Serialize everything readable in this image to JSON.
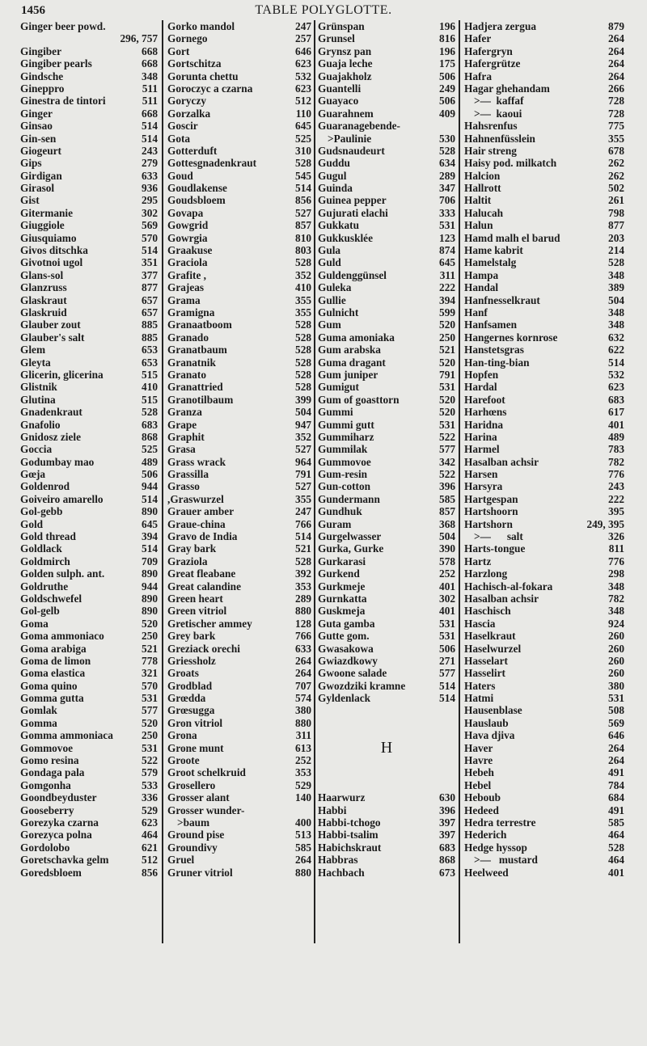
{
  "header": {
    "page_number": "1456",
    "title": "TABLE POLYGLOTTE."
  },
  "columns": [
    [
      [
        "Ginger beer powd.",
        ""
      ],
      [
        "",
        "296, 757"
      ],
      [
        "Gingiber",
        "668"
      ],
      [
        "Gingiber pearls",
        "668"
      ],
      [
        "Gindsche",
        "348"
      ],
      [
        "Gineppro",
        "511"
      ],
      [
        "Ginestra de tintori",
        "511"
      ],
      [
        "Ginger",
        "668"
      ],
      [
        "Ginsao",
        "514"
      ],
      [
        "Gin-sen",
        "514"
      ],
      [
        "Giogeurt",
        "243"
      ],
      [
        "Gips",
        "279"
      ],
      [
        "Girdigan",
        "633"
      ],
      [
        "Girasol",
        "936"
      ],
      [
        "Gist",
        "295"
      ],
      [
        "Gitermanie",
        "302"
      ],
      [
        "Giuggiole",
        "569"
      ],
      [
        "Giusquiamo",
        "570"
      ],
      [
        "Givos ditschka",
        "514"
      ],
      [
        "Givotnoi ugol",
        "351"
      ],
      [
        "Glans-sol",
        "377"
      ],
      [
        "Glanzruss",
        "877"
      ],
      [
        "Glaskraut",
        "657"
      ],
      [
        "Glaskruid",
        "657"
      ],
      [
        "Glauber zout",
        "885"
      ],
      [
        "Glauber's salt",
        "885"
      ],
      [
        "Glem",
        "653"
      ],
      [
        "Gleyta",
        "653"
      ],
      [
        "Glicerin, glicerina",
        "515"
      ],
      [
        "Glistnik",
        "410"
      ],
      [
        "Glutina",
        "515"
      ],
      [
        "Gnadenkraut",
        "528"
      ],
      [
        "Gnafolio",
        "683"
      ],
      [
        "Gnidosz ziele",
        "868"
      ],
      [
        "Goccia",
        "525"
      ],
      [
        "Godumbay mao",
        "489"
      ],
      [
        "Gœja",
        "506"
      ],
      [
        "Goldenrod",
        "944"
      ],
      [
        "Goiveiro amarello",
        "514"
      ],
      [
        "Gol-gebb",
        "890"
      ],
      [
        "Gold",
        "645"
      ],
      [
        "Gold thread",
        "394"
      ],
      [
        "Goldlack",
        "514"
      ],
      [
        "Goldmirch",
        "709"
      ],
      [
        "Golden sulph. ant.",
        "890"
      ],
      [
        "Goldruthe",
        "944"
      ],
      [
        "Goldschwefel",
        "890"
      ],
      [
        "Gol-gelb",
        "890"
      ],
      [
        "Goma",
        "520"
      ],
      [
        "Goma ammoniaco",
        "250"
      ],
      [
        "Goma arabiga",
        "521"
      ],
      [
        "Goma de limon",
        "778"
      ],
      [
        "Goma elastica",
        "321"
      ],
      [
        "Goma quino",
        "570"
      ],
      [
        "Gomma gutta",
        "531"
      ],
      [
        "Gomlak",
        "577"
      ],
      [
        "Gomma",
        "520"
      ],
      [
        "Gomma ammoniaca",
        "250"
      ],
      [
        "Gommovoe",
        "531"
      ],
      [
        "Gomo resina",
        "522"
      ],
      [
        "Gondaga pala",
        "579"
      ],
      [
        "Gomgonha",
        "533"
      ],
      [
        "Goondbeyduster",
        "336"
      ],
      [
        "Gooseberry",
        "529"
      ],
      [
        "Gorezyka czarna",
        "623"
      ],
      [
        "Gorezyca polna",
        "464"
      ],
      [
        "Gordolobo",
        "621"
      ],
      [
        "Goretschavka gelm",
        "512"
      ],
      [
        "Goredsbloem",
        "856"
      ]
    ],
    [
      [
        "Gorko mandol",
        "247"
      ],
      [
        "Gornego",
        "257"
      ],
      [
        "Gort",
        "646"
      ],
      [
        "Gortschitza",
        "623"
      ],
      [
        "Gorunta chettu",
        "532"
      ],
      [
        "Goroczyc a czarna",
        "623"
      ],
      [
        "Goryczy",
        "512"
      ],
      [
        "Gorzalka",
        "110"
      ],
      [
        "Goscir",
        "645"
      ],
      [
        "Gota",
        "525"
      ],
      [
        "Gotterduft",
        "310"
      ],
      [
        "Gottesgnadenkraut",
        "528"
      ],
      [
        "Goud",
        "545"
      ],
      [
        "Goudlakense",
        "514"
      ],
      [
        "Goudsbloem",
        "856"
      ],
      [
        "Govapa",
        "527"
      ],
      [
        "Gowgrid",
        "857"
      ],
      [
        "Gowrgia",
        "810"
      ],
      [
        "Graakuse",
        "803"
      ],
      [
        "Graciola",
        "528"
      ],
      [
        "Grafite ,",
        "352"
      ],
      [
        "Grajeas",
        "410"
      ],
      [
        "Grama",
        "355"
      ],
      [
        "Gramigna",
        "355"
      ],
      [
        "Granaatboom",
        "528"
      ],
      [
        "Granado",
        "528"
      ],
      [
        "Granatbaum",
        "528"
      ],
      [
        "Granatnik",
        "528"
      ],
      [
        "Granato",
        "528"
      ],
      [
        "Granattried",
        "528"
      ],
      [
        "Granotilbaum",
        "399"
      ],
      [
        "Granza",
        "504"
      ],
      [
        "Grape",
        "947"
      ],
      [
        "Graphit",
        "352"
      ],
      [
        "Grasa",
        "527"
      ],
      [
        "Grass wrack",
        "964"
      ],
      [
        "Grassilla",
        "791"
      ],
      [
        "Grasso",
        "527"
      ],
      [
        ",Graswurzel",
        "355"
      ],
      [
        "Grauer amber",
        "247"
      ],
      [
        "Graue-china",
        "766"
      ],
      [
        "Gravo de India",
        "514"
      ],
      [
        "Gray bark",
        "521"
      ],
      [
        "Graziola",
        "528"
      ],
      [
        "Great fleabane",
        "392"
      ],
      [
        "Great calandine",
        "353"
      ],
      [
        "Green heart",
        "289"
      ],
      [
        "Green vitriol",
        "880"
      ],
      [
        "Gretischer ammey",
        "128"
      ],
      [
        "Grey bark",
        "766"
      ],
      [
        "Greziack orechi",
        "633"
      ],
      [
        "Griessholz",
        "264"
      ],
      [
        "Groats",
        "264"
      ],
      [
        "Grodblad",
        "707"
      ],
      [
        "Grœdda",
        "574"
      ],
      [
        "Grœsugga",
        "380"
      ],
      [
        "Gron vitriol",
        "880"
      ],
      [
        "Grona",
        "311"
      ],
      [
        "Grone munt",
        "613"
      ],
      [
        "Groote",
        "252"
      ],
      [
        "Groot schelkruid",
        "353"
      ],
      [
        "Grosellero",
        "529"
      ],
      [
        "Grosser alant",
        "140"
      ],
      [
        "Grosser wunder-",
        ""
      ],
      [
        ">baum",
        "400"
      ],
      [
        "Ground pise",
        "513"
      ],
      [
        "Groundivy",
        "585"
      ],
      [
        "Gruel",
        "264"
      ],
      [
        "Gruner vitriol",
        "880"
      ]
    ],
    [
      [
        "Grünspan",
        "196"
      ],
      [
        "Grunsel",
        "816"
      ],
      [
        "Grynsz pan",
        "196"
      ],
      [
        "Guaja leche",
        "175"
      ],
      [
        "Guajakholz",
        "506"
      ],
      [
        "Guantelli",
        "249"
      ],
      [
        "Guayaco",
        "506"
      ],
      [
        "Guarahnem",
        "409"
      ],
      [
        "Guaranagebende-",
        ""
      ],
      [
        ">Paulinie",
        "530"
      ],
      [
        "Gudsnaudeurt",
        "528"
      ],
      [
        "Guddu",
        "634"
      ],
      [
        "Gugul",
        "289"
      ],
      [
        "Guinda",
        "347"
      ],
      [
        "Guinea pepper",
        "706"
      ],
      [
        "Gujurati elachi",
        "333"
      ],
      [
        "Gukkatu",
        "531"
      ],
      [
        "Gukkusklée",
        "123"
      ],
      [
        "Gula",
        "874"
      ],
      [
        "Guld",
        "645"
      ],
      [
        "Guldenggünsel",
        "311"
      ],
      [
        "Guleka",
        "222"
      ],
      [
        "Gullie",
        "394"
      ],
      [
        "Gulnicht",
        "599"
      ],
      [
        "Gum",
        "520"
      ],
      [
        "Guma amoniaka",
        "250"
      ],
      [
        "Gum arabska",
        "521"
      ],
      [
        "Guma dragant",
        "520"
      ],
      [
        "Gum juniper",
        "791"
      ],
      [
        "Gumigut",
        "531"
      ],
      [
        "Gum of goasttorn",
        "520"
      ],
      [
        "Gummi",
        "520"
      ],
      [
        "Gummi gutt",
        "531"
      ],
      [
        "Gummiharz",
        "522"
      ],
      [
        "Gummilak",
        "577"
      ],
      [
        "Gummovoe",
        "342"
      ],
      [
        "Gum-resin",
        "522"
      ],
      [
        "Gun-cotton",
        "396"
      ],
      [
        "Gundermann",
        "585"
      ],
      [
        "Gundhuk",
        "857"
      ],
      [
        "Guram",
        "368"
      ],
      [
        "Gurgelwasser",
        "504"
      ],
      [
        "Gurka, Gurke",
        "390"
      ],
      [
        "Gurkarasi",
        "578"
      ],
      [
        "Gurkend",
        "252"
      ],
      [
        "Gurkmeje",
        "401"
      ],
      [
        "Gurnkatta",
        "302"
      ],
      [
        "Guskmeja",
        "401"
      ],
      [
        "Guta gamba",
        "531"
      ],
      [
        "Gutte gom.",
        "531"
      ],
      [
        "Gwasakowa",
        "506"
      ],
      [
        "Gwiazdkowy",
        "271"
      ],
      [
        "Gwoone salade",
        "577"
      ],
      [
        "Gwozdziki kramne",
        "514"
      ],
      [
        "Gyldenlack",
        "514"
      ],
      [
        "",
        ""
      ],
      [
        "",
        ""
      ],
      [
        "",
        ""
      ],
      [
        "#H",
        ""
      ],
      [
        "",
        ""
      ],
      [
        "",
        ""
      ],
      [
        "",
        ""
      ],
      [
        "Haarwurz",
        "630"
      ],
      [
        "Habbi",
        "396"
      ],
      [
        "Habbi-tchogo",
        "397"
      ],
      [
        "Habbi-tsalim",
        "397"
      ],
      [
        "Habichskraut",
        "683"
      ],
      [
        "Habbras",
        "868"
      ],
      [
        "Hachbach",
        "673"
      ]
    ],
    [
      [
        "Hadjera zergua",
        "879"
      ],
      [
        "Hafer",
        "264"
      ],
      [
        "Hafergryn",
        "264"
      ],
      [
        "Hafergrütze",
        "264"
      ],
      [
        "Hafra",
        "264"
      ],
      [
        "Hagar ghehandam",
        "266"
      ],
      [
        ">—  kaffaf",
        "728"
      ],
      [
        ">—  kaoui",
        "728"
      ],
      [
        "Hahsrenfus",
        "775"
      ],
      [
        "Hahnenfüsslein",
        "355"
      ],
      [
        "Hair streng",
        "678"
      ],
      [
        "Haisy pod. milkatch",
        "262"
      ],
      [
        "Halcion",
        "262"
      ],
      [
        "Hallrott",
        "502"
      ],
      [
        "Haltit",
        "261"
      ],
      [
        "Halucah",
        "798"
      ],
      [
        "Halun",
        "877"
      ],
      [
        "Hamd malh el barud",
        "203"
      ],
      [
        "Hame kabrit",
        "214"
      ],
      [
        "Hamelstalg",
        "528"
      ],
      [
        "Hampa",
        "348"
      ],
      [
        "Handal",
        "389"
      ],
      [
        "Hanfnesselkraut",
        "504"
      ],
      [
        "Hanf",
        "348"
      ],
      [
        "Hanfsamen",
        "348"
      ],
      [
        "Hangernes kornrose",
        "632"
      ],
      [
        "Hanstetsgras",
        "622"
      ],
      [
        "Han-ting-bian",
        "514"
      ],
      [
        "Hopfen",
        "532"
      ],
      [
        "Hardal",
        "623"
      ],
      [
        "Harefoot",
        "683"
      ],
      [
        "Harhœns",
        "617"
      ],
      [
        "Haridna",
        "401"
      ],
      [
        "Harina",
        "489"
      ],
      [
        "Harmel",
        "783"
      ],
      [
        "Hasalban achsir",
        "782"
      ],
      [
        "Harsen",
        "776"
      ],
      [
        "Harsyra",
        "243"
      ],
      [
        "Hartgespan",
        "222"
      ],
      [
        "Hartshoorn",
        "395"
      ],
      [
        "Hartshorn",
        "249, 395"
      ],
      [
        ">—      salt",
        "326"
      ],
      [
        "Harts-tongue",
        "811"
      ],
      [
        "Hartz",
        "776"
      ],
      [
        "Harzlong",
        "298"
      ],
      [
        "Hachisch-al-fokara",
        "348"
      ],
      [
        "Hasalban achsir",
        "782"
      ],
      [
        "Haschisch",
        "348"
      ],
      [
        "Hascia",
        "924"
      ],
      [
        "Haselkraut",
        "260"
      ],
      [
        "Haselwurzel",
        "260"
      ],
      [
        "Hasselart",
        "260"
      ],
      [
        "Hasselirt",
        "260"
      ],
      [
        "Haters",
        "380"
      ],
      [
        "Hatmi",
        "531"
      ],
      [
        "Hausenblase",
        "508"
      ],
      [
        "Hauslaub",
        "569"
      ],
      [
        "Hava djiva",
        "646"
      ],
      [
        "Haver",
        "264"
      ],
      [
        "Havre",
        "264"
      ],
      [
        "Hebeh",
        "491"
      ],
      [
        "Hebel",
        "784"
      ],
      [
        "Heboub",
        "684"
      ],
      [
        "Hedeed",
        "491"
      ],
      [
        "Hedra terrestre",
        "585"
      ],
      [
        "Hederich",
        "464"
      ],
      [
        "Hedge hyssop",
        "528"
      ],
      [
        ">—   mustard",
        "464"
      ],
      [
        "Heelweed",
        "401"
      ]
    ]
  ]
}
